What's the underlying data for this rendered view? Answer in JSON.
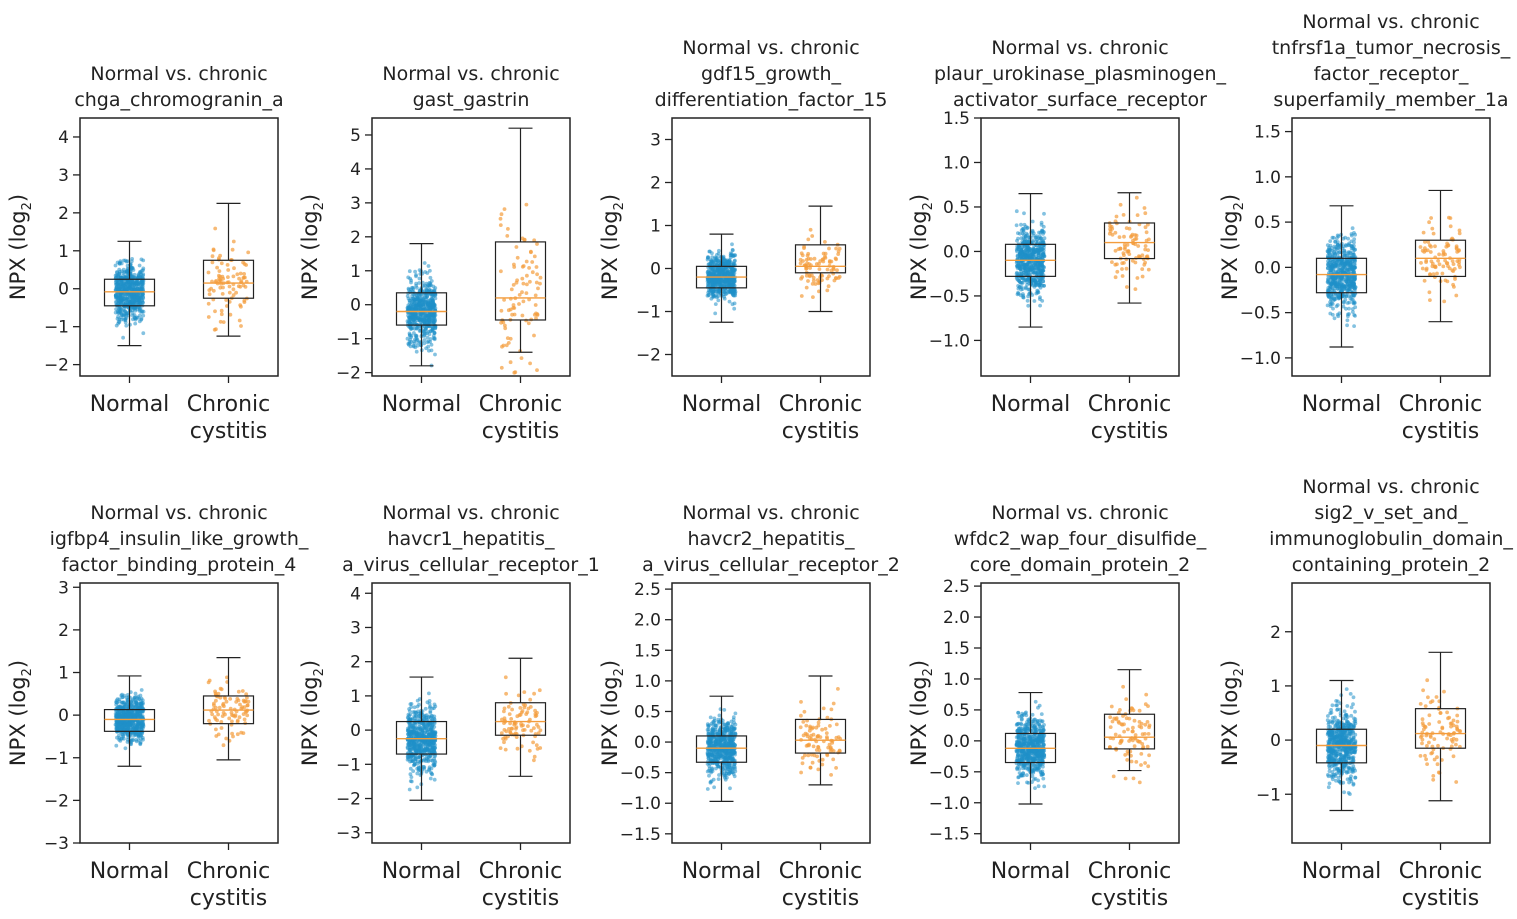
{
  "chart_data": [
    {
      "type": "box",
      "title_lines": [
        "Normal vs. chronic",
        "chga_chromogranin_a"
      ],
      "ylabel": "NPX (log",
      "ylabel_sub": "2",
      "ylim": [
        -2.3,
        4.5
      ],
      "ticks": [
        -2,
        -1,
        0,
        1,
        2,
        3,
        4
      ],
      "categories": [
        "Normal",
        "Chronic cystitis"
      ],
      "category_lines": [
        [
          "Normal"
        ],
        [
          "Chronic",
          "cystitis"
        ]
      ],
      "series": [
        {
          "name": "Normal",
          "color": "#1f8fc8",
          "box": {
            "whisker_low": -1.5,
            "q1": -0.45,
            "median": -0.08,
            "q3": 0.25,
            "whisker_high": 1.25
          },
          "n_points": 600
        },
        {
          "name": "Chronic cystitis",
          "color": "#f39c3c",
          "box": {
            "whisker_low": -1.25,
            "q1": -0.25,
            "median": 0.15,
            "q3": 0.75,
            "whisker_high": 2.25
          },
          "n_points": 90
        }
      ]
    },
    {
      "type": "box",
      "title_lines": [
        "Normal vs. chronic",
        "gast_gastrin"
      ],
      "ylabel": "NPX (log",
      "ylabel_sub": "2",
      "ylim": [
        -2.1,
        5.5
      ],
      "ticks": [
        -2,
        -1,
        0,
        1,
        2,
        3,
        4,
        5
      ],
      "categories": [
        "Normal",
        "Chronic cystitis"
      ],
      "category_lines": [
        [
          "Normal"
        ],
        [
          "Chronic",
          "cystitis"
        ]
      ],
      "series": [
        {
          "name": "Normal",
          "color": "#1f8fc8",
          "box": {
            "whisker_low": -1.8,
            "q1": -0.6,
            "median": -0.2,
            "q3": 0.35,
            "whisker_high": 1.8
          },
          "n_points": 600
        },
        {
          "name": "Chronic cystitis",
          "color": "#f39c3c",
          "box": {
            "whisker_low": -1.4,
            "q1": -0.45,
            "median": 0.2,
            "q3": 1.85,
            "whisker_high": 5.2
          },
          "n_points": 90
        }
      ]
    },
    {
      "type": "box",
      "title_lines": [
        "Normal vs. chronic",
        "gdf15_growth_",
        "differentiation_factor_15"
      ],
      "ylabel": "NPX (log",
      "ylabel_sub": "2",
      "ylim": [
        -2.5,
        3.5
      ],
      "ticks": [
        -2,
        -1,
        0,
        1,
        2,
        3
      ],
      "categories": [
        "Normal",
        "Chronic cystitis"
      ],
      "category_lines": [
        [
          "Normal"
        ],
        [
          "Chronic",
          "cystitis"
        ]
      ],
      "series": [
        {
          "name": "Normal",
          "color": "#1f8fc8",
          "box": {
            "whisker_low": -1.25,
            "q1": -0.45,
            "median": -0.2,
            "q3": 0.05,
            "whisker_high": 0.8
          },
          "n_points": 600
        },
        {
          "name": "Chronic cystitis",
          "color": "#f39c3c",
          "box": {
            "whisker_low": -1.0,
            "q1": -0.1,
            "median": 0.05,
            "q3": 0.55,
            "whisker_high": 1.45
          },
          "n_points": 90
        }
      ]
    },
    {
      "type": "box",
      "title_lines": [
        "Normal vs. chronic",
        "plaur_urokinase_plasminogen_",
        "activator_surface_receptor"
      ],
      "ylabel": "NPX (log",
      "ylabel_sub": "2",
      "ylim": [
        -1.4,
        1.5
      ],
      "ticks": [
        -1.0,
        -0.5,
        0.0,
        0.5,
        1.0,
        1.5
      ],
      "categories": [
        "Normal",
        "Chronic cystitis"
      ],
      "category_lines": [
        [
          "Normal"
        ],
        [
          "Chronic",
          "cystitis"
        ]
      ],
      "series": [
        {
          "name": "Normal",
          "color": "#1f8fc8",
          "box": {
            "whisker_low": -0.85,
            "q1": -0.28,
            "median": -0.1,
            "q3": 0.08,
            "whisker_high": 0.65
          },
          "n_points": 600
        },
        {
          "name": "Chronic cystitis",
          "color": "#f39c3c",
          "box": {
            "whisker_low": -0.58,
            "q1": -0.08,
            "median": 0.1,
            "q3": 0.32,
            "whisker_high": 0.66
          },
          "n_points": 90
        }
      ]
    },
    {
      "type": "box",
      "title_lines": [
        "Normal vs. chronic",
        "tnfrsf1a_tumor_necrosis_",
        "factor_receptor_",
        "superfamily_member_1a"
      ],
      "ylabel": "NPX (log",
      "ylabel_sub": "2",
      "ylim": [
        -1.2,
        1.65
      ],
      "ticks": [
        -1.0,
        -0.5,
        0.0,
        0.5,
        1.0,
        1.5
      ],
      "categories": [
        "Normal",
        "Chronic cystitis"
      ],
      "category_lines": [
        [
          "Normal"
        ],
        [
          "Chronic",
          "cystitis"
        ]
      ],
      "series": [
        {
          "name": "Normal",
          "color": "#1f8fc8",
          "box": {
            "whisker_low": -0.88,
            "q1": -0.28,
            "median": -0.08,
            "q3": 0.1,
            "whisker_high": 0.68
          },
          "n_points": 600
        },
        {
          "name": "Chronic cystitis",
          "color": "#f39c3c",
          "box": {
            "whisker_low": -0.6,
            "q1": -0.1,
            "median": 0.1,
            "q3": 0.3,
            "whisker_high": 0.85
          },
          "n_points": 90
        }
      ]
    },
    {
      "type": "box",
      "title_lines": [
        "Normal vs. chronic",
        "igfbp4_insulin_like_growth_",
        "factor_binding_protein_4"
      ],
      "ylabel": "NPX (log",
      "ylabel_sub": "2",
      "ylim": [
        -3.0,
        3.1
      ],
      "ticks": [
        -3,
        -2,
        -1,
        0,
        1,
        2,
        3
      ],
      "categories": [
        "Normal",
        "Chronic cystitis"
      ],
      "category_lines": [
        [
          "Normal"
        ],
        [
          "Chronic",
          "cystitis"
        ]
      ],
      "series": [
        {
          "name": "Normal",
          "color": "#1f8fc8",
          "box": {
            "whisker_low": -1.2,
            "q1": -0.38,
            "median": -0.1,
            "q3": 0.13,
            "whisker_high": 0.92
          },
          "n_points": 600
        },
        {
          "name": "Chronic cystitis",
          "color": "#f39c3c",
          "box": {
            "whisker_low": -1.05,
            "q1": -0.2,
            "median": 0.12,
            "q3": 0.45,
            "whisker_high": 1.35
          },
          "n_points": 90
        }
      ]
    },
    {
      "type": "box",
      "title_lines": [
        "Normal vs. chronic",
        "havcr1_hepatitis_",
        "a_virus_cellular_receptor_1"
      ],
      "ylabel": "NPX (log",
      "ylabel_sub": "2",
      "ylim": [
        -3.3,
        4.3
      ],
      "ticks": [
        -3,
        -2,
        -1,
        0,
        1,
        2,
        3,
        4
      ],
      "categories": [
        "Normal",
        "Chronic cystitis"
      ],
      "category_lines": [
        [
          "Normal"
        ],
        [
          "Chronic",
          "cystitis"
        ]
      ],
      "series": [
        {
          "name": "Normal",
          "color": "#1f8fc8",
          "box": {
            "whisker_low": -2.05,
            "q1": -0.7,
            "median": -0.25,
            "q3": 0.25,
            "whisker_high": 1.55
          },
          "n_points": 600
        },
        {
          "name": "Chronic cystitis",
          "color": "#f39c3c",
          "box": {
            "whisker_low": -1.35,
            "q1": -0.15,
            "median": 0.25,
            "q3": 0.8,
            "whisker_high": 2.1
          },
          "n_points": 90
        }
      ]
    },
    {
      "type": "box",
      "title_lines": [
        "Normal vs. chronic",
        "havcr2_hepatitis_",
        "a_virus_cellular_receptor_2"
      ],
      "ylabel": "NPX (log",
      "ylabel_sub": "2",
      "ylim": [
        -1.65,
        2.6
      ],
      "ticks": [
        -1.5,
        -1.0,
        -0.5,
        0.0,
        0.5,
        1.0,
        1.5,
        2.0,
        2.5
      ],
      "categories": [
        "Normal",
        "Chronic cystitis"
      ],
      "category_lines": [
        [
          "Normal"
        ],
        [
          "Chronic",
          "cystitis"
        ]
      ],
      "series": [
        {
          "name": "Normal",
          "color": "#1f8fc8",
          "box": {
            "whisker_low": -0.97,
            "q1": -0.33,
            "median": -0.1,
            "q3": 0.1,
            "whisker_high": 0.75
          },
          "n_points": 600
        },
        {
          "name": "Chronic cystitis",
          "color": "#f39c3c",
          "box": {
            "whisker_low": -0.7,
            "q1": -0.18,
            "median": 0.03,
            "q3": 0.37,
            "whisker_high": 1.08
          },
          "n_points": 90
        }
      ]
    },
    {
      "type": "box",
      "title_lines": [
        "Normal vs. chronic",
        "wfdc2_wap_four_disulfide_",
        "core_domain_protein_2"
      ],
      "ylabel": "NPX (log",
      "ylabel_sub": "2",
      "ylim": [
        -1.65,
        2.55
      ],
      "ticks": [
        -1.5,
        -1.0,
        -0.5,
        0.0,
        0.5,
        1.0,
        1.5,
        2.0,
        2.5
      ],
      "categories": [
        "Normal",
        "Chronic cystitis"
      ],
      "category_lines": [
        [
          "Normal"
        ],
        [
          "Chronic",
          "cystitis"
        ]
      ],
      "series": [
        {
          "name": "Normal",
          "color": "#1f8fc8",
          "box": {
            "whisker_low": -1.02,
            "q1": -0.35,
            "median": -0.12,
            "q3": 0.12,
            "whisker_high": 0.78
          },
          "n_points": 600
        },
        {
          "name": "Chronic cystitis",
          "color": "#f39c3c",
          "box": {
            "whisker_low": -0.48,
            "q1": -0.13,
            "median": 0.06,
            "q3": 0.43,
            "whisker_high": 1.15
          },
          "n_points": 90
        }
      ]
    },
    {
      "type": "box",
      "title_lines": [
        "Normal vs. chronic",
        "sig2_v_set_and_",
        "immunoglobulin_domain_",
        "containing_protein_2"
      ],
      "ylabel": "NPX (log",
      "ylabel_sub": "2",
      "ylim": [
        -1.9,
        2.9
      ],
      "ticks": [
        -1,
        0,
        1,
        2
      ],
      "categories": [
        "Normal",
        "Chronic cystitis"
      ],
      "category_lines": [
        [
          "Normal"
        ],
        [
          "Chronic",
          "cystitis"
        ]
      ],
      "series": [
        {
          "name": "Normal",
          "color": "#1f8fc8",
          "box": {
            "whisker_low": -1.3,
            "q1": -0.42,
            "median": -0.1,
            "q3": 0.2,
            "whisker_high": 1.1
          },
          "n_points": 600
        },
        {
          "name": "Chronic cystitis",
          "color": "#f39c3c",
          "box": {
            "whisker_low": -1.12,
            "q1": -0.15,
            "median": 0.12,
            "q3": 0.58,
            "whisker_high": 1.62
          },
          "n_points": 90
        }
      ]
    }
  ]
}
